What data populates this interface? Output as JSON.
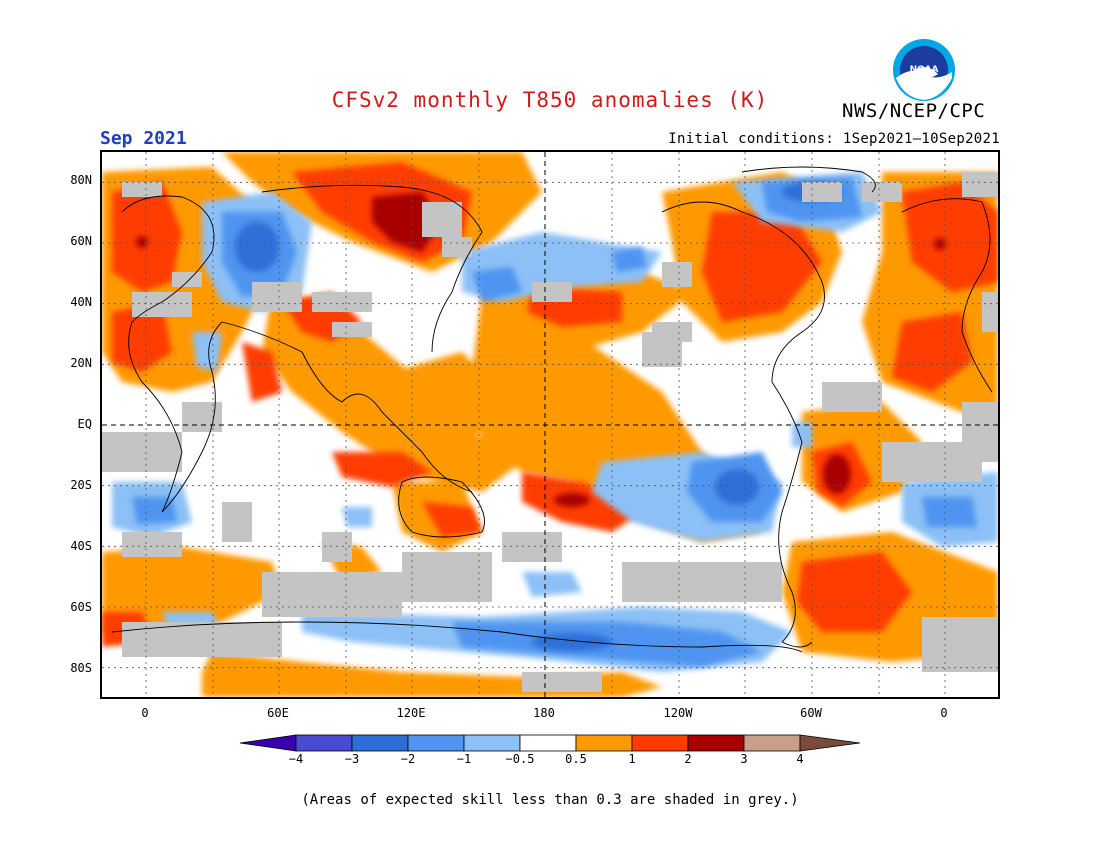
{
  "header": {
    "title": "CFSv2 monthly T850 anomalies (K)",
    "agency": "NWS/NCEP/CPC",
    "logo_text": "NOAA",
    "month": "Sep 2021",
    "initial_conditions": "Initial conditions: 1Sep2021—10Sep2021"
  },
  "map": {
    "lat_labels": [
      "80N",
      "60N",
      "40N",
      "20N",
      "EQ",
      "20S",
      "40S",
      "60S",
      "80S"
    ],
    "lon_labels": [
      "0",
      "60E",
      "120E",
      "180",
      "120W",
      "60W",
      "0"
    ],
    "gridlines": "dotted",
    "reference_lines": [
      "EQ",
      "180"
    ]
  },
  "legend": {
    "labels": [
      "−4",
      "−3",
      "−2",
      "−1",
      "−0.5",
      "0.5",
      "1",
      "2",
      "3",
      "4"
    ],
    "colors": [
      "#3a00b0",
      "#4a4ad2",
      "#2d6fd8",
      "#4f94f0",
      "#8cc0f6",
      "#ffffff",
      "#ff9900",
      "#ff3c00",
      "#a80000",
      "#c8a08a",
      "#7a4a3a"
    ]
  },
  "colors": {
    "skill_grey": "#c4c4c4",
    "title_red": "#d11a1a",
    "month_blue": "#1f3fbf"
  },
  "footnote": "(Areas of expected skill less than 0.3 are shaded in grey.)"
}
